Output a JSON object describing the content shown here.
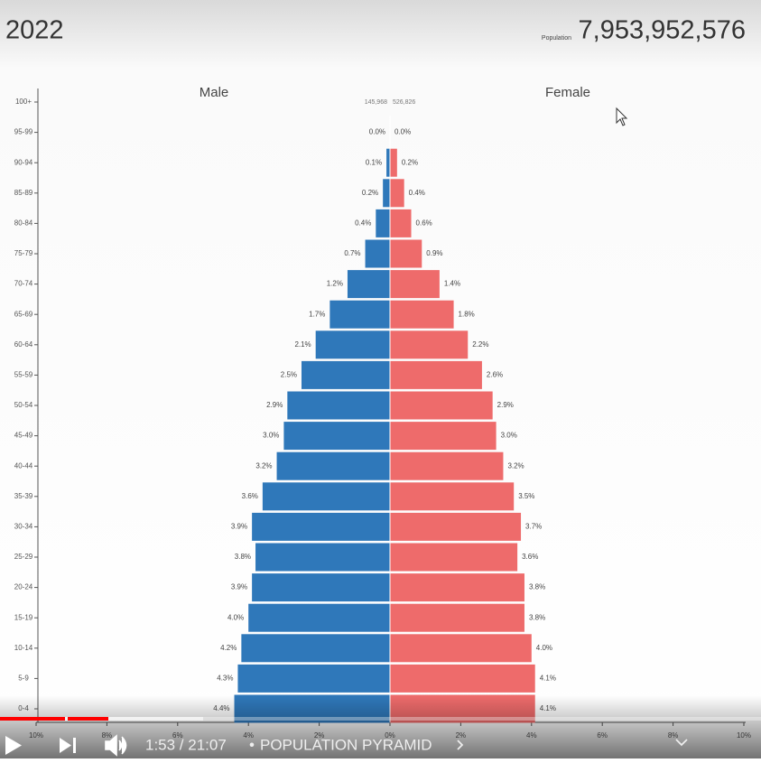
{
  "header": {
    "year": "2022",
    "population_label": "Population",
    "population": "7,953,952,576"
  },
  "chart_data": {
    "type": "population-pyramid",
    "categories": [
      "0-4",
      "5-9",
      "10-14",
      "15-19",
      "20-24",
      "25-29",
      "30-34",
      "35-39",
      "40-44",
      "45-49",
      "50-54",
      "55-59",
      "60-64",
      "65-69",
      "70-74",
      "75-79",
      "80-84",
      "85-89",
      "90-94",
      "95-99",
      "100+"
    ],
    "series": [
      {
        "name": "Male",
        "color": "#2f78ba",
        "values": [
          4.4,
          4.3,
          4.2,
          4.0,
          3.9,
          3.8,
          3.9,
          3.6,
          3.2,
          3.0,
          2.9,
          2.5,
          2.1,
          1.7,
          1.2,
          0.7,
          0.4,
          0.2,
          0.1,
          0.0,
          null
        ],
        "value_labels": [
          "4.4%",
          "4.3%",
          "4.2%",
          "4.0%",
          "3.9%",
          "3.8%",
          "3.9%",
          "3.6%",
          "3.2%",
          "3.0%",
          "2.9%",
          "2.5%",
          "2.1%",
          "1.7%",
          "1.2%",
          "0.7%",
          "0.4%",
          "0.2%",
          "0.1%",
          "0.0%",
          null
        ]
      },
      {
        "name": "Female",
        "color": "#ee6b6b",
        "values": [
          4.1,
          4.1,
          4.0,
          3.8,
          3.8,
          3.6,
          3.7,
          3.5,
          3.2,
          3.0,
          2.9,
          2.6,
          2.2,
          1.8,
          1.4,
          0.9,
          0.6,
          0.4,
          0.2,
          0.0,
          null
        ],
        "value_labels": [
          "4.1%",
          "4.1%",
          "4.0%",
          "3.8%",
          "3.8%",
          "3.6%",
          "3.7%",
          "3.5%",
          "3.2%",
          "3.0%",
          "2.9%",
          "2.6%",
          "2.2%",
          "1.8%",
          "1.4%",
          "0.9%",
          "0.6%",
          "0.4%",
          "0.2%",
          "0.0%",
          null
        ]
      }
    ],
    "top_counts": [
      "145,968",
      "526,826"
    ],
    "xlim": [
      -10,
      10
    ],
    "xticks": [
      {
        "value": -10,
        "label": "10%"
      },
      {
        "value": -8,
        "label": "8%"
      },
      {
        "value": -6,
        "label": "6%"
      },
      {
        "value": -4,
        "label": "4%"
      },
      {
        "value": -2,
        "label": "2%"
      },
      {
        "value": 0,
        "label": "0%"
      },
      {
        "value": 2,
        "label": "2%"
      },
      {
        "value": 4,
        "label": "4%"
      },
      {
        "value": 6,
        "label": "6%"
      },
      {
        "value": 8,
        "label": "8%"
      },
      {
        "value": 10,
        "label": "10%"
      }
    ]
  },
  "player": {
    "time": "1:53 / 21:07",
    "chapter": "POPULATION PYRAMID"
  }
}
